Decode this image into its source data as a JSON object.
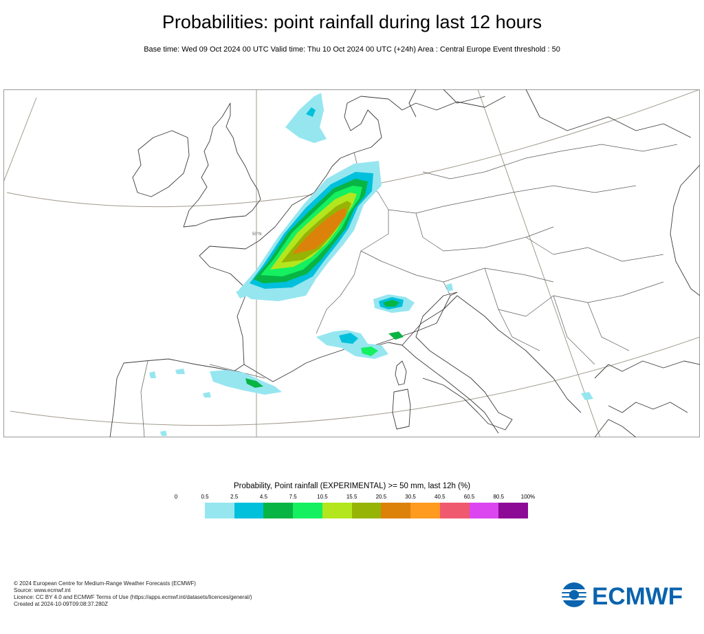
{
  "title": "Probabilities: point rainfall during last 12 hours",
  "subtitle": "Base time: Wed 09 Oct 2024 00 UTC Valid time: Thu 10 Oct 2024 00 UTC (+24h) Area : Central Europe Event threshold : 50",
  "map": {
    "region": "Central Europe",
    "graticule_label": "50°N",
    "colors": {
      "land_outline": "#3a3a3a",
      "graticule": "#a09a8c",
      "frame": "#999999"
    }
  },
  "legend": {
    "title": "Probability, Point rainfall (EXPERIMENTAL) >= 50 mm, last 12h (%)",
    "ticks": [
      "0",
      "0.5",
      "2.5",
      "4.5",
      "7.5",
      "10.5",
      "15.5",
      "20.5",
      "30.5",
      "40.5",
      "60.5",
      "80.5",
      "100%"
    ],
    "colors": [
      "#96e6f0",
      "#00c0dc",
      "#08b444",
      "#14f060",
      "#b4e61e",
      "#96b405",
      "#dc820a",
      "#ff9b1e",
      "#f05a6e",
      "#dc46f0",
      "#8c0a96"
    ]
  },
  "footer": {
    "line1": "© 2024 European Centre for Medium-Range Weather Forecasts (ECMWF)",
    "line2": "Source: www.ecmwf.int",
    "line3": "Licence: CC BY 4.0 and ECMWF Terms of Use (https://apps.ecmwf.int/datasets/licences/general/)",
    "line4": "Created at 2024-10-09T09:08:37.280Z"
  },
  "logo": {
    "text": "ECMWF",
    "color": "#0a63ae"
  }
}
